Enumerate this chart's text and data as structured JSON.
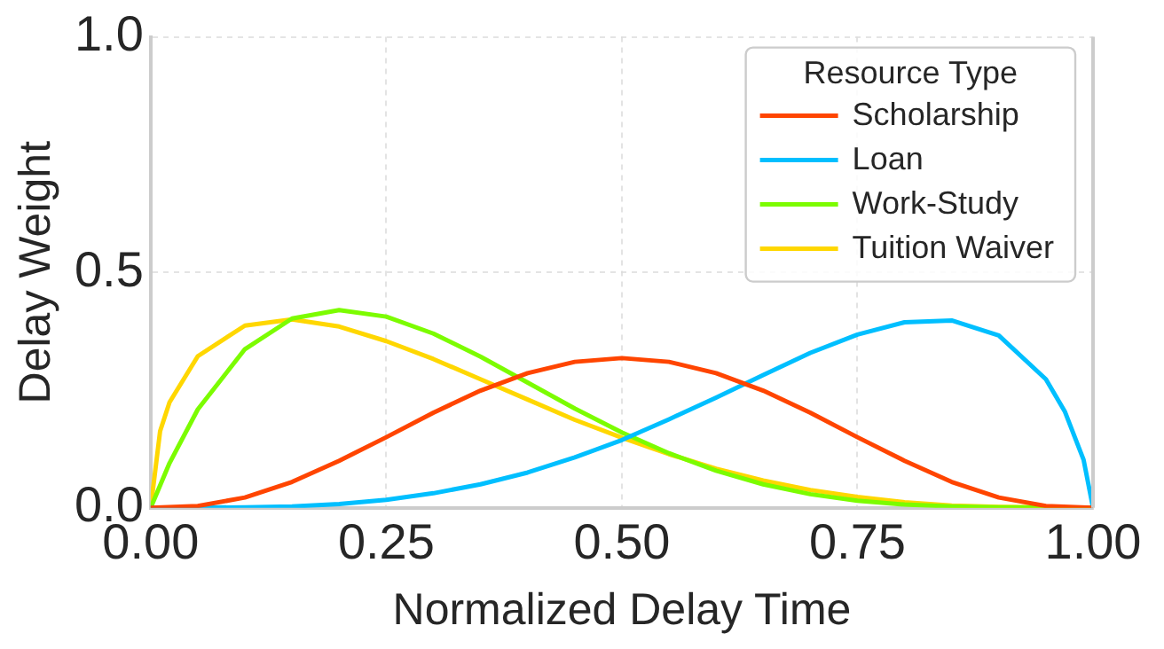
{
  "chart_data": {
    "type": "line",
    "xlabel": "Normalized Delay Time",
    "ylabel": "Delay Weight",
    "legend_title": "Resource Type",
    "legend": "top right",
    "grid": true,
    "marker": "none",
    "line_style": "solid",
    "xlim": [
      0,
      1
    ],
    "xticks": [
      {
        "value": 0,
        "label": "0.00"
      },
      {
        "value": 0.25,
        "label": "0.25"
      },
      {
        "value": 0.5,
        "label": "0.50"
      },
      {
        "value": 0.75,
        "label": "0.75"
      },
      {
        "value": 1,
        "label": "1.00"
      }
    ],
    "ylim": [
      0,
      1
    ],
    "yticks": [
      {
        "value": 0,
        "label": "0.0"
      },
      {
        "value": 0.5,
        "label": "0.5"
      },
      {
        "value": 1,
        "label": "1.0"
      }
    ],
    "series": [
      {
        "name": "Scholarship",
        "color": "#ff4500",
        "x": [
          0,
          0.05,
          0.1,
          0.15,
          0.2,
          0.25,
          0.3,
          0.35,
          0.4,
          0.45,
          0.5,
          0.55,
          0.6,
          0.65,
          0.7,
          0.75,
          0.8,
          0.85,
          0.9,
          0.95,
          1
        ],
        "values": [
          0,
          0.004,
          0.022,
          0.055,
          0.1,
          0.15,
          0.202,
          0.249,
          0.286,
          0.31,
          0.318,
          0.31,
          0.286,
          0.249,
          0.202,
          0.15,
          0.1,
          0.055,
          0.022,
          0.004,
          0
        ]
      },
      {
        "name": "Loan",
        "color": "#00bfff",
        "x": [
          0,
          0.1,
          0.15,
          0.2,
          0.25,
          0.3,
          0.35,
          0.4,
          0.45,
          0.5,
          0.55,
          0.6,
          0.65,
          0.7,
          0.75,
          0.8,
          0.85,
          0.9,
          0.95,
          0.97,
          0.99,
          1
        ],
        "values": [
          0,
          0.001,
          0.003,
          0.008,
          0.017,
          0.031,
          0.05,
          0.075,
          0.107,
          0.144,
          0.188,
          0.234,
          0.282,
          0.329,
          0.368,
          0.394,
          0.398,
          0.366,
          0.273,
          0.205,
          0.102,
          0
        ]
      },
      {
        "name": "Work-Study",
        "color": "#7cfc00",
        "x": [
          0,
          0.02,
          0.05,
          0.1,
          0.15,
          0.2,
          0.25,
          0.3,
          0.35,
          0.4,
          0.45,
          0.5,
          0.55,
          0.6,
          0.65,
          0.7,
          0.75,
          0.8,
          0.85,
          0.9,
          1
        ],
        "values": [
          0,
          0.095,
          0.209,
          0.337,
          0.402,
          0.42,
          0.406,
          0.37,
          0.321,
          0.266,
          0.211,
          0.16,
          0.116,
          0.079,
          0.05,
          0.029,
          0.015,
          0.007,
          0.003,
          0.001,
          0
        ]
      },
      {
        "name": "Tuition Waiver",
        "color": "#ffd700",
        "x": [
          0,
          0.01,
          0.02,
          0.05,
          0.1,
          0.15,
          0.2,
          0.25,
          0.3,
          0.35,
          0.4,
          0.45,
          0.5,
          0.55,
          0.6,
          0.65,
          0.7,
          0.75,
          0.8,
          0.85,
          0.9,
          1
        ],
        "values": [
          0,
          0.163,
          0.224,
          0.322,
          0.387,
          0.4,
          0.385,
          0.354,
          0.316,
          0.273,
          0.23,
          0.187,
          0.149,
          0.114,
          0.083,
          0.058,
          0.038,
          0.023,
          0.012,
          0.005,
          0.002,
          0
        ]
      }
    ]
  }
}
